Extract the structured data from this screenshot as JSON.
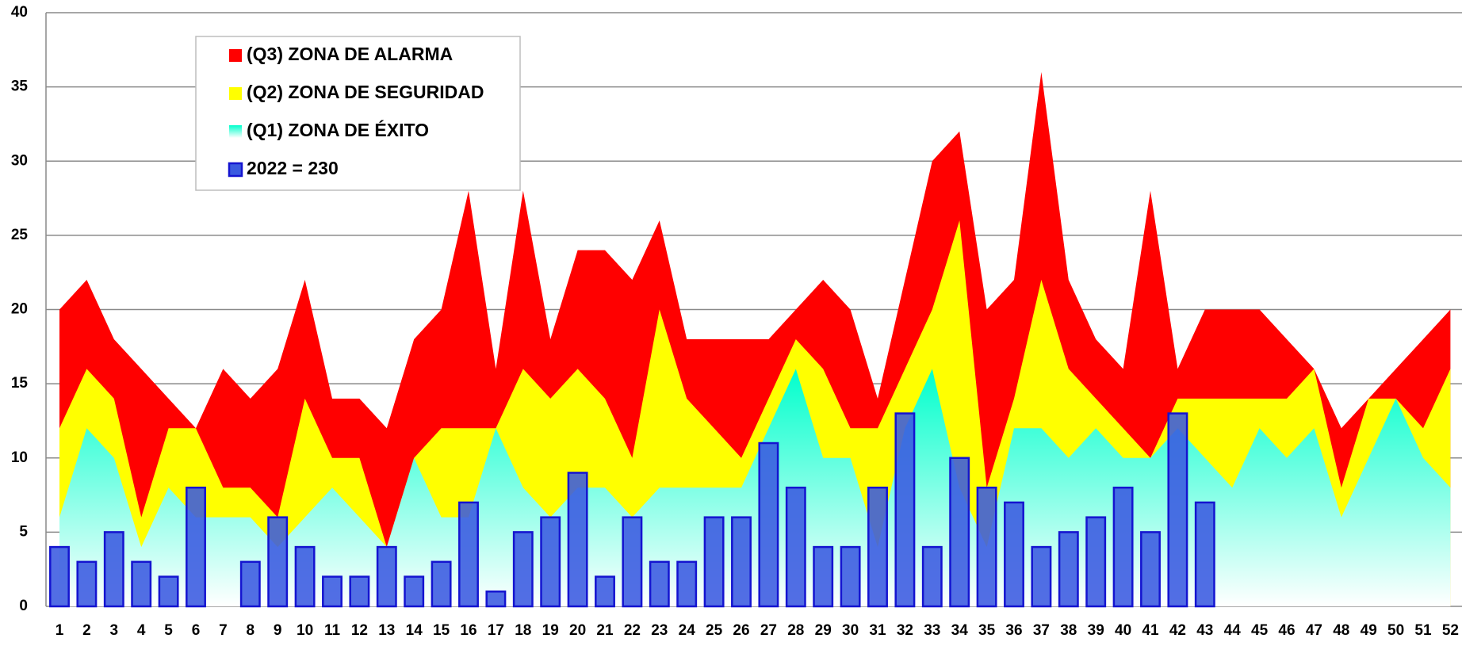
{
  "chart_data": {
    "type": "area-bar",
    "categories": [
      "1",
      "2",
      "3",
      "4",
      "5",
      "6",
      "7",
      "8",
      "9",
      "10",
      "11",
      "12",
      "13",
      "14",
      "15",
      "16",
      "17",
      "18",
      "19",
      "20",
      "21",
      "22",
      "23",
      "24",
      "25",
      "26",
      "27",
      "28",
      "29",
      "30",
      "31",
      "32",
      "33",
      "34",
      "35",
      "36",
      "37",
      "38",
      "39",
      "40",
      "41",
      "42",
      "43",
      "44",
      "45",
      "46",
      "47",
      "48",
      "49",
      "50",
      "51",
      "52"
    ],
    "series": [
      {
        "name": "(Q3) ZONA DE ALARMA",
        "type": "area",
        "color": "#ff0000",
        "values": [
          20,
          22,
          18,
          16,
          14,
          12,
          16,
          14,
          16,
          22,
          14,
          14,
          12,
          18,
          20,
          28,
          16,
          28,
          18,
          24,
          24,
          22,
          26,
          18,
          18,
          18,
          18,
          20,
          22,
          20,
          14,
          22,
          30,
          32,
          20,
          22,
          36,
          22,
          18,
          16,
          28,
          16,
          20,
          20,
          20,
          18,
          16,
          12,
          14,
          16,
          18,
          20
        ]
      },
      {
        "name": "(Q2) ZONA DE SEGURIDAD",
        "type": "area",
        "color": "#ffff00",
        "values": [
          12,
          16,
          14,
          6,
          12,
          12,
          8,
          8,
          6,
          14,
          10,
          10,
          4,
          10,
          12,
          12,
          12,
          16,
          14,
          16,
          14,
          10,
          20,
          14,
          12,
          10,
          14,
          18,
          16,
          12,
          12,
          16,
          20,
          26,
          8,
          14,
          22,
          16,
          14,
          12,
          10,
          14,
          14,
          14,
          14,
          14,
          16,
          8,
          14,
          14,
          12,
          16
        ]
      },
      {
        "name": "(Q1) ZONA DE ÉXITO",
        "type": "area",
        "color": "#00ffcc",
        "values": [
          6,
          12,
          10,
          4,
          8,
          6,
          6,
          6,
          4,
          6,
          8,
          6,
          4,
          10,
          6,
          6,
          12,
          8,
          6,
          8,
          8,
          6,
          8,
          8,
          8,
          8,
          12,
          16,
          10,
          10,
          4,
          12,
          16,
          8,
          4,
          12,
          12,
          10,
          12,
          10,
          10,
          12,
          10,
          8,
          12,
          10,
          12,
          6,
          10,
          14,
          10,
          8
        ]
      },
      {
        "name": "2022 = 230",
        "type": "bar",
        "color": "#3a5ae0",
        "values": [
          4,
          3,
          5,
          3,
          2,
          8,
          0,
          3,
          6,
          4,
          2,
          2,
          4,
          2,
          3,
          7,
          1,
          5,
          6,
          9,
          2,
          6,
          3,
          3,
          6,
          6,
          11,
          8,
          4,
          4,
          8,
          13,
          4,
          10,
          8,
          7,
          4,
          5,
          6,
          8,
          5,
          13,
          7,
          null,
          null,
          null,
          null,
          null,
          null,
          null,
          null,
          null
        ]
      }
    ],
    "ylim": [
      0,
      40
    ],
    "yticks": [
      0,
      5,
      10,
      15,
      20,
      25,
      30,
      35,
      40
    ],
    "grid": true,
    "legend": "upper left"
  }
}
